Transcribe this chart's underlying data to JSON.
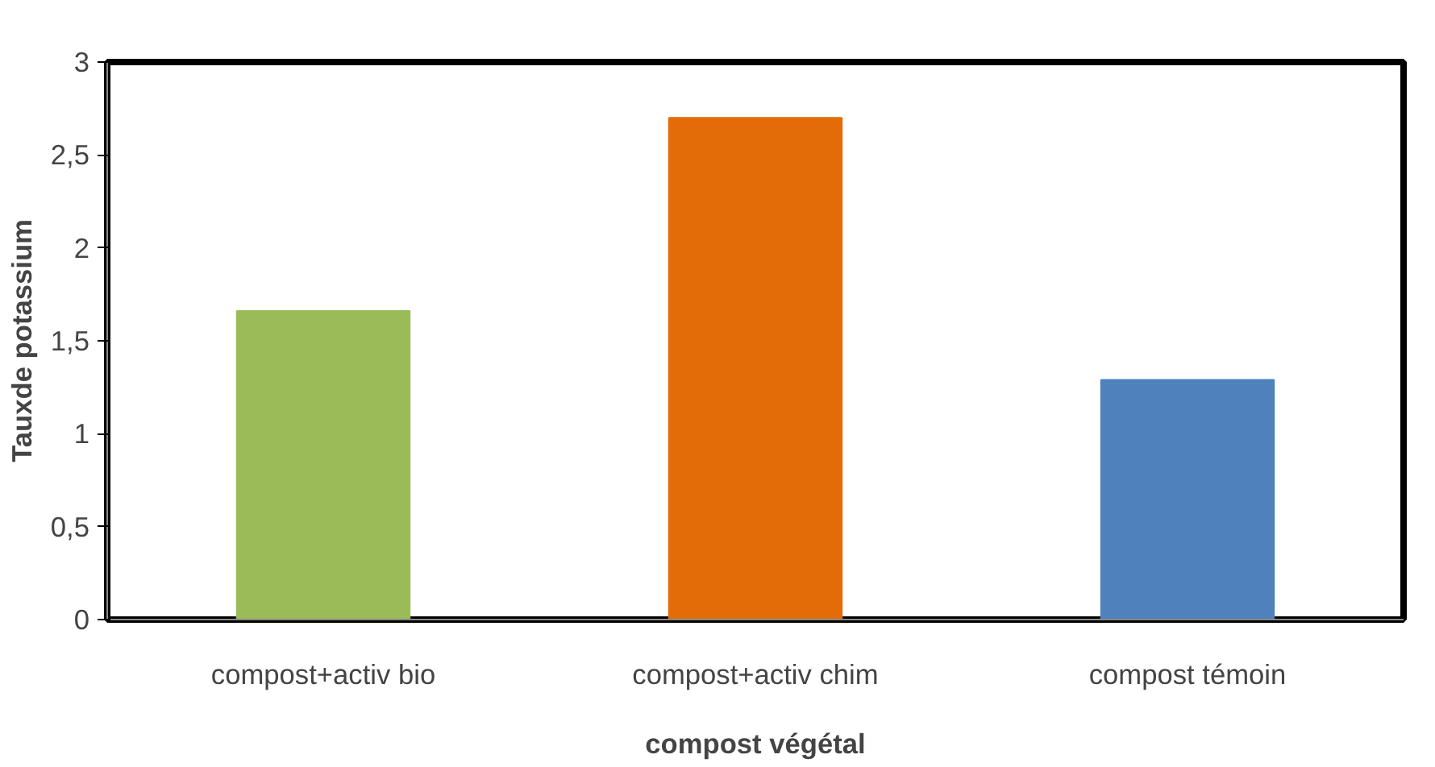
{
  "chart_data": {
    "type": "bar",
    "xlabel": "compost végétal",
    "ylabel": "Tauxde potassium",
    "categories": [
      "compost+activ bio",
      "compost+activ chim",
      "compost témoin"
    ],
    "values": [
      1.66,
      2.7,
      1.29
    ],
    "colors": [
      "#9bbb59",
      "#e36c09",
      "#4f81bd"
    ],
    "ylim": [
      0,
      3
    ],
    "yticks": [
      0,
      {
        "value": 0.5,
        "label": "0,5"
      },
      1,
      {
        "value": 1.5,
        "label": "1,5"
      },
      2,
      {
        "value": 2.5,
        "label": "2,5"
      },
      3
    ],
    "grid": false
  }
}
